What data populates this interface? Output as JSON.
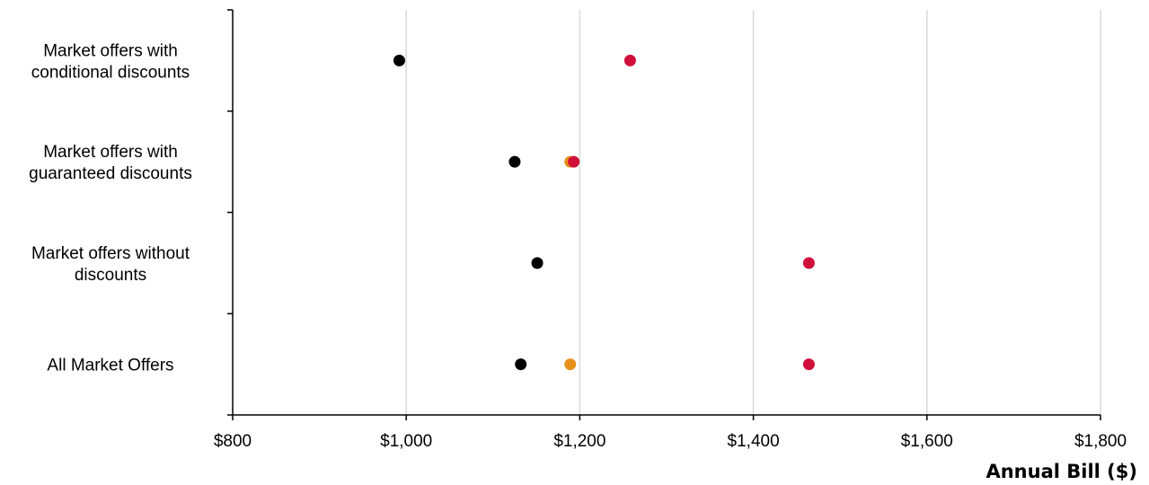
{
  "chart_data": {
    "type": "scatter",
    "title": "",
    "xlabel": "Annual Bill ($)",
    "ylabel": "",
    "xlim": [
      800,
      1800
    ],
    "x_ticks": [
      {
        "value": 800,
        "label": "$800"
      },
      {
        "value": 1000,
        "label": "$1,000"
      },
      {
        "value": 1200,
        "label": "$1,200"
      },
      {
        "value": 1400,
        "label": "$1,400"
      },
      {
        "value": 1600,
        "label": "$1,600"
      },
      {
        "value": 1800,
        "label": "$1,800"
      }
    ],
    "grid": "vertical",
    "legend": "none",
    "categories": [
      {
        "id": "conditional",
        "lines": [
          "Market offers with",
          "conditional discounts"
        ]
      },
      {
        "id": "guaranteed",
        "lines": [
          "Market offers with",
          "guaranteed discounts"
        ]
      },
      {
        "id": "without",
        "lines": [
          "Market offers  without",
          "discounts"
        ]
      },
      {
        "id": "all",
        "lines": [
          "All Market Offers"
        ]
      }
    ],
    "series": [
      {
        "color": "#000000",
        "values": [
          992,
          1125,
          1151,
          1132
        ]
      },
      {
        "color": "#E8901A",
        "values": [
          null,
          1189,
          null,
          1189
        ]
      },
      {
        "color": "#D0103A",
        "values": [
          1258,
          1193,
          1464,
          1464
        ]
      }
    ]
  }
}
